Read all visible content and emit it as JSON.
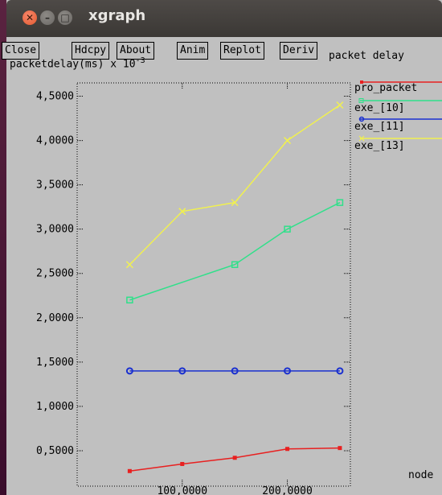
{
  "window": {
    "title": "xgraph"
  },
  "buttons": [
    "Close",
    "Hdcpy",
    "About",
    "Anim",
    "Replot",
    "Deriv"
  ],
  "plot_title": "packet delay",
  "y_axis_label": "packetdelay(ms) x 10",
  "y_axis_exponent": "-3",
  "x_axis_label": "node",
  "legend": [
    {
      "name": "pro_packet",
      "color": "#e82020"
    },
    {
      "name": "exe_[10]",
      "color": "#30e08a"
    },
    {
      "name": "exe_[11]",
      "color": "#1a30d0"
    },
    {
      "name": "exe_[13]",
      "color": "#f0f050"
    }
  ],
  "chart_data": {
    "type": "line",
    "title": "packet delay",
    "xlabel": "node",
    "ylabel": "packetdelay(ms) x 10^-3",
    "x_ticks": [
      "100,0000",
      "200,0000"
    ],
    "y_ticks": [
      "0,5000",
      "1,0000",
      "1,5000",
      "2,0000",
      "2,5000",
      "3,0000",
      "3,5000",
      "4,0000",
      "4,5000"
    ],
    "xlim": [
      0,
      260
    ],
    "ylim": [
      0.1,
      4.65
    ],
    "grid": false,
    "legend_position": "right",
    "x": [
      50,
      100,
      150,
      200,
      250
    ],
    "series": [
      {
        "name": "pro_packet",
        "color": "#e82020",
        "marker": "dot",
        "values": [
          0.27,
          0.35,
          0.42,
          0.52,
          0.53
        ]
      },
      {
        "name": "exe_[10]",
        "color": "#30e08a",
        "marker": "square",
        "values": [
          2.2,
          null,
          2.6,
          3.0,
          3.3
        ]
      },
      {
        "name": "exe_[11]",
        "color": "#1a30d0",
        "marker": "circle",
        "values": [
          1.4,
          1.4,
          1.4,
          1.4,
          1.4
        ]
      },
      {
        "name": "exe_[13]",
        "color": "#f0f050",
        "marker": "x",
        "values": [
          2.6,
          3.2,
          3.3,
          4.0,
          4.4
        ]
      }
    ]
  }
}
